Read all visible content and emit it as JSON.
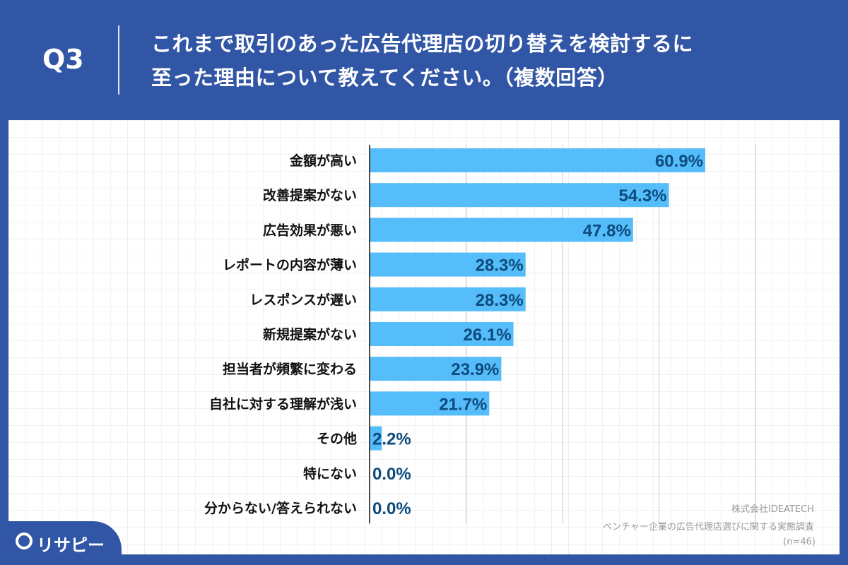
{
  "header": {
    "q_label": "Q3",
    "title_line1": "これまで取引のあった広告代理店の切り替えを検討するに",
    "title_line2": "至った理由について教えてください。（複数回答）"
  },
  "footer": {
    "company": "株式会社IDEATECH",
    "survey": "ベンチャー企業の広告代理店選びに関する実態調査",
    "n": "(n=46)",
    "logo": "リサピー"
  },
  "colors": {
    "bar": "#56bdfb",
    "label": "#0d4b7c",
    "header": "#3256a6"
  },
  "chart_data": {
    "type": "bar",
    "orientation": "horizontal",
    "xlim": [
      0,
      70
    ],
    "grid": true,
    "categories": [
      "金額が高い",
      "改善提案がない",
      "広告効果が悪い",
      "レポートの内容が薄い",
      "レスポンスが遅い",
      "新規提案がない",
      "担当者が頻繁に変わる",
      "自社に対する理解が浅い",
      "その他",
      "特にない",
      "分からない/答えられない"
    ],
    "values": [
      60.9,
      54.3,
      47.8,
      28.3,
      28.3,
      26.1,
      23.9,
      21.7,
      2.2,
      0.0,
      0.0
    ],
    "labels": [
      "60.9%",
      "54.3%",
      "47.8%",
      "28.3%",
      "28.3%",
      "26.1%",
      "23.9%",
      "21.7%",
      "2.2%",
      "0.0%",
      "0.0%"
    ]
  }
}
